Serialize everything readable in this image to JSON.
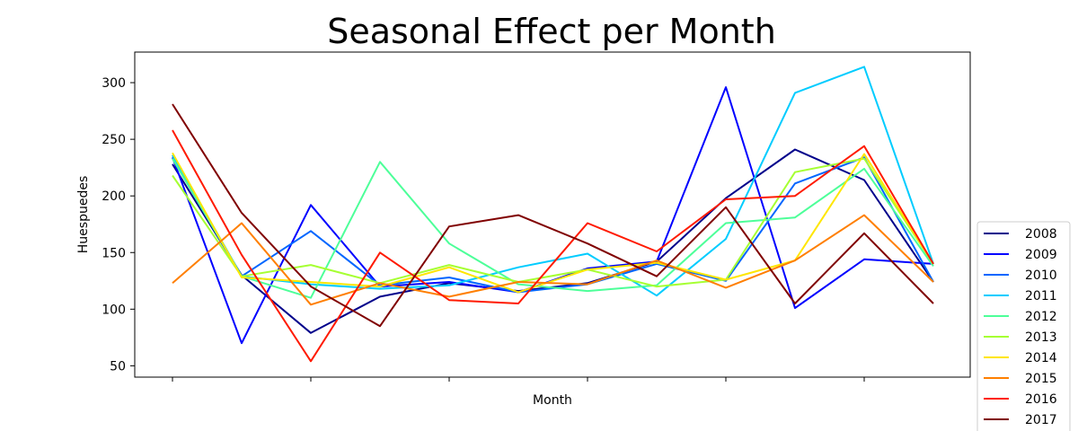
{
  "chart_data": {
    "type": "line",
    "title": "Seasonal Effect per Month",
    "xlabel": "Month",
    "ylabel": "Huespuedes",
    "x": [
      1,
      2,
      3,
      4,
      5,
      6,
      7,
      8,
      9,
      10,
      11,
      12
    ],
    "ylim": [
      40,
      327
    ],
    "yticks": [
      50,
      100,
      150,
      200,
      250,
      300
    ],
    "grid": false,
    "legend_position": "outside-right-bottom",
    "series": [
      {
        "name": "2008",
        "color": "#00008b",
        "values": [
          228,
          130,
          79,
          111,
          123,
          116,
          123,
          142,
          198,
          241,
          214,
          124
        ]
      },
      {
        "name": "2009",
        "color": "#0000ff",
        "values": [
          234,
          70,
          192,
          120,
          124,
          115,
          136,
          142,
          296,
          101,
          144,
          140
        ]
      },
      {
        "name": "2010",
        "color": "#0066ff",
        "values": [
          236,
          129,
          169,
          121,
          128,
          115,
          122,
          140,
          125,
          211,
          234,
          124
        ]
      },
      {
        "name": "2011",
        "color": "#00ccff",
        "values": [
          236,
          129,
          122,
          118,
          121,
          137,
          149,
          112,
          162,
          291,
          314,
          140
        ]
      },
      {
        "name": "2012",
        "color": "#4dff99",
        "values": [
          233,
          129,
          110,
          230,
          158,
          122,
          116,
          121,
          176,
          181,
          224,
          138
        ]
      },
      {
        "name": "2013",
        "color": "#a6ff33",
        "values": [
          218,
          129,
          139,
          123,
          139,
          124,
          135,
          120,
          126,
          221,
          233,
          140
        ]
      },
      {
        "name": "2014",
        "color": "#ffe600",
        "values": [
          238,
          128,
          124,
          120,
          137,
          115,
          135,
          141,
          126,
          143,
          237,
          140
        ]
      },
      {
        "name": "2015",
        "color": "#ff7f00",
        "values": [
          123,
          176,
          104,
          123,
          111,
          124,
          122,
          143,
          119,
          143,
          183,
          124
        ]
      },
      {
        "name": "2016",
        "color": "#ff1a00",
        "values": [
          258,
          148,
          54,
          150,
          108,
          105,
          176,
          151,
          197,
          200,
          244,
          140
        ]
      },
      {
        "name": "2017",
        "color": "#800000",
        "values": [
          281,
          185,
          120,
          85,
          173,
          183,
          158,
          129,
          190,
          105,
          167,
          105
        ]
      }
    ]
  }
}
